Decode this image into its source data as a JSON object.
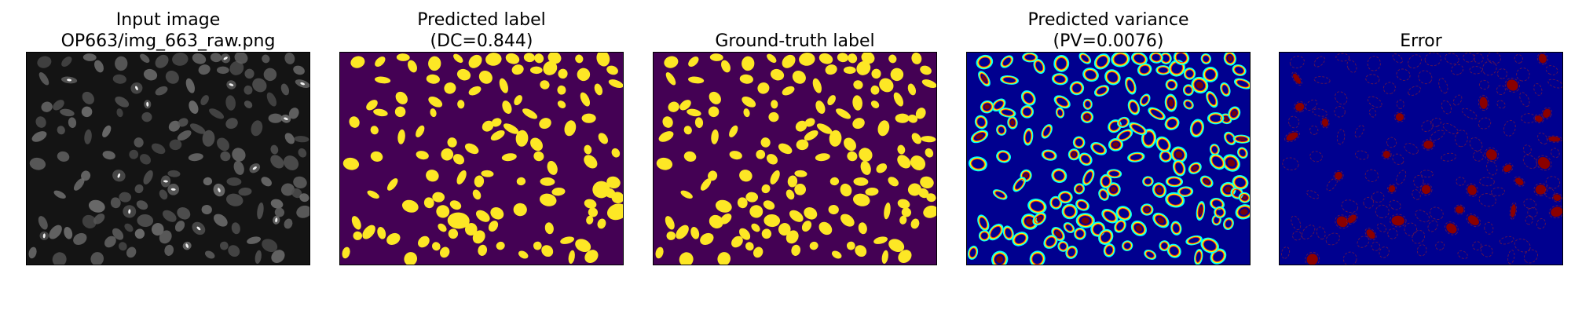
{
  "panels": [
    {
      "id": "input",
      "title_lines": [
        "Input image",
        "OP663/img_663_raw.png"
      ]
    },
    {
      "id": "pred",
      "title_lines": [
        "Predicted label",
        "(DC=0.844)"
      ]
    },
    {
      "id": "gt",
      "title_lines": [
        "Ground-truth label"
      ]
    },
    {
      "id": "var",
      "title_lines": [
        "Predicted variance",
        "(PV=0.0076)"
      ]
    },
    {
      "id": "err",
      "title_lines": [
        "Error"
      ]
    }
  ],
  "colors": {
    "input_background": "#141414",
    "input_nucleus": "#6e6e6e",
    "input_bright_spot": "#f2f2f2",
    "label_background": "#440154",
    "label_foreground": "#fde725",
    "variance_background": "#00008f",
    "variance_ring": [
      "#00ffff",
      "#ffff00",
      "#ff3000",
      "#800000"
    ],
    "error_background": "#00008f",
    "error_foreground": "#8b0000",
    "error_outline": "#7a1a3a"
  },
  "image_content": "fluorescence microscopy nuclei field with segmentation masks"
}
